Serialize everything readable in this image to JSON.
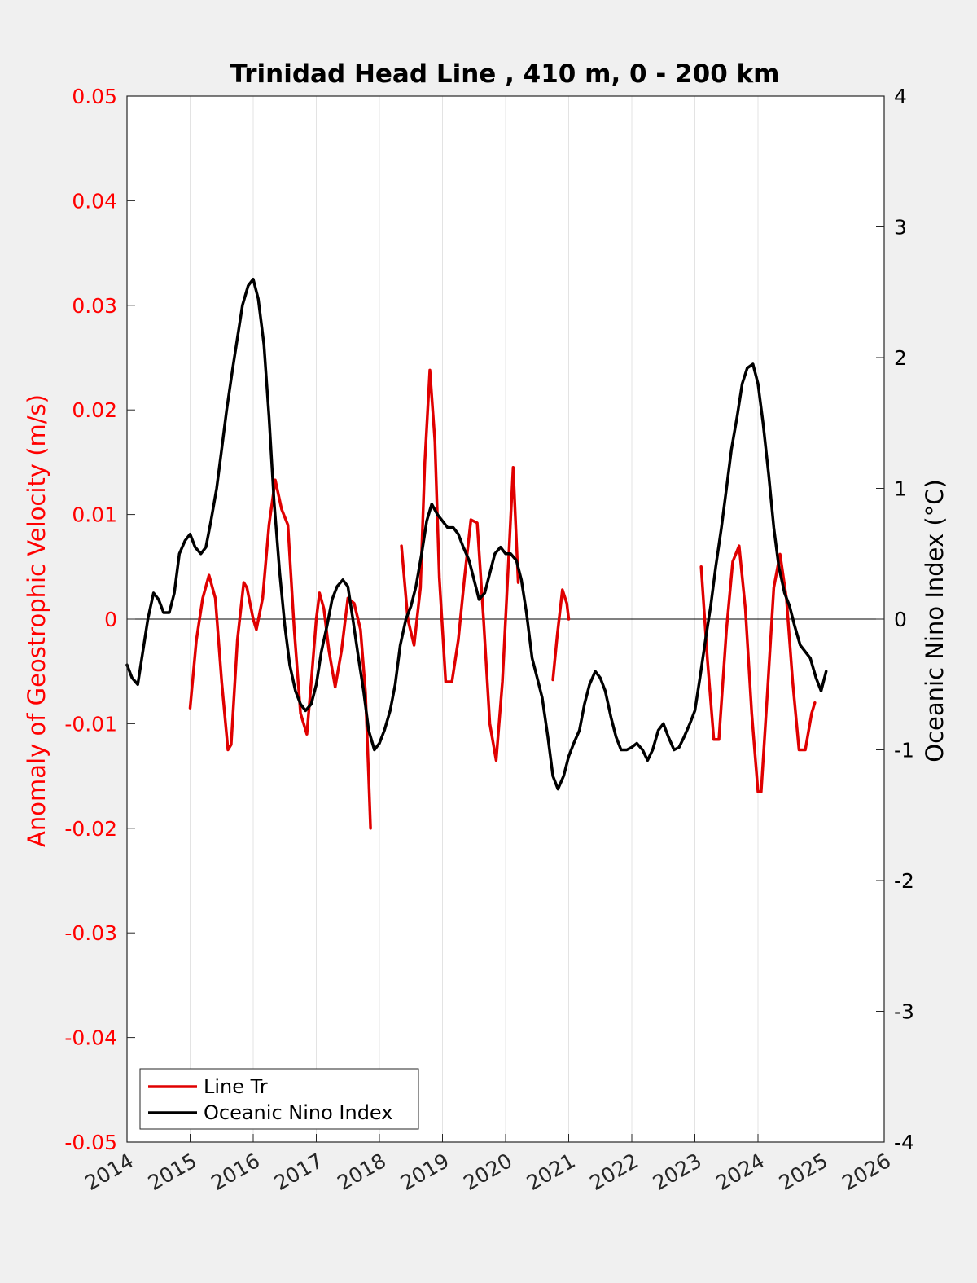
{
  "chart_data": {
    "type": "line",
    "title": "Trinidad Head Line , 410 m, 0 - 200 km",
    "xlim": [
      2014,
      2026
    ],
    "x_ticks": [
      "2014",
      "2015",
      "2016",
      "2017",
      "2018",
      "2019",
      "2020",
      "2021",
      "2022",
      "2023",
      "2024",
      "2025",
      "2026"
    ],
    "y_left": {
      "label": "Anomaly of Geostrophic Velocity (m/s)",
      "lim": [
        -0.05,
        0.05
      ],
      "ticks": [
        "0.05",
        "0.04",
        "0.03",
        "0.02",
        "0.01",
        "0",
        "-0.01",
        "-0.02",
        "-0.03",
        "-0.04",
        "-0.05"
      ],
      "color": "#ff0000"
    },
    "y_right": {
      "label": "Oceanic Nino Index (°C)",
      "lim": [
        -4,
        4
      ],
      "ticks": [
        "4",
        "3",
        "2",
        "1",
        "0",
        "-1",
        "-2",
        "-3",
        "-4"
      ],
      "color": "#000000"
    },
    "grid": "vertical",
    "legend_location": "bottom-left",
    "series": [
      {
        "name": "Line Tr",
        "axis": "left",
        "color": "#e00000",
        "segments": [
          [
            [
              2015.0,
              -0.0085
            ],
            [
              2015.1,
              -0.002
            ],
            [
              2015.2,
              0.002
            ],
            [
              2015.3,
              0.0042
            ],
            [
              2015.4,
              0.002
            ],
            [
              2015.5,
              -0.006
            ],
            [
              2015.6,
              -0.0125
            ],
            [
              2015.65,
              -0.012
            ],
            [
              2015.75,
              -0.002
            ],
            [
              2015.85,
              0.0035
            ],
            [
              2015.9,
              0.003
            ],
            [
              2016.0,
              0.0
            ],
            [
              2016.05,
              -0.001
            ],
            [
              2016.15,
              0.002
            ],
            [
              2016.25,
              0.009
            ],
            [
              2016.35,
              0.0133
            ],
            [
              2016.45,
              0.0105
            ],
            [
              2016.55,
              0.009
            ],
            [
              2016.65,
              -0.001
            ],
            [
              2016.75,
              -0.009
            ],
            [
              2016.85,
              -0.011
            ],
            [
              2016.92,
              -0.006
            ],
            [
              2017.0,
              0.0
            ],
            [
              2017.05,
              0.0025
            ],
            [
              2017.12,
              0.001
            ],
            [
              2017.2,
              -0.003
            ],
            [
              2017.3,
              -0.0065
            ],
            [
              2017.4,
              -0.003
            ],
            [
              2017.5,
              0.002
            ],
            [
              2017.6,
              0.0015
            ],
            [
              2017.7,
              -0.001
            ],
            [
              2017.78,
              -0.007
            ],
            [
              2017.83,
              -0.015
            ],
            [
              2017.86,
              -0.02
            ]
          ],
          [
            [
              2018.35,
              0.007
            ],
            [
              2018.45,
              0.0
            ],
            [
              2018.55,
              -0.0025
            ],
            [
              2018.65,
              0.003
            ],
            [
              2018.72,
              0.015
            ],
            [
              2018.8,
              0.0238
            ],
            [
              2018.88,
              0.017
            ],
            [
              2018.95,
              0.004
            ],
            [
              2019.05,
              -0.006
            ],
            [
              2019.15,
              -0.006
            ],
            [
              2019.25,
              -0.002
            ],
            [
              2019.35,
              0.004
            ],
            [
              2019.45,
              0.0095
            ],
            [
              2019.55,
              0.0092
            ],
            [
              2019.65,
              0.0
            ],
            [
              2019.75,
              -0.01
            ],
            [
              2019.85,
              -0.0135
            ],
            [
              2019.95,
              -0.006
            ],
            [
              2020.05,
              0.006
            ],
            [
              2020.12,
              0.0145
            ],
            [
              2020.2,
              0.0035
            ]
          ],
          [
            [
              2020.75,
              -0.0058
            ],
            [
              2020.82,
              -0.0015
            ],
            [
              2020.9,
              0.0028
            ],
            [
              2020.97,
              0.0015
            ],
            [
              2021.0,
              0.0
            ]
          ],
          [
            [
              2023.1,
              0.005
            ],
            [
              2023.2,
              -0.004
            ],
            [
              2023.3,
              -0.0115
            ],
            [
              2023.38,
              -0.0115
            ],
            [
              2023.5,
              -0.001
            ],
            [
              2023.6,
              0.0055
            ],
            [
              2023.7,
              0.007
            ],
            [
              2023.8,
              0.001
            ],
            [
              2023.9,
              -0.009
            ],
            [
              2024.0,
              -0.0165
            ],
            [
              2024.05,
              -0.0165
            ],
            [
              2024.15,
              -0.007
            ],
            [
              2024.25,
              0.003
            ],
            [
              2024.35,
              0.0062
            ],
            [
              2024.45,
              0.002
            ],
            [
              2024.55,
              -0.006
            ],
            [
              2024.65,
              -0.0125
            ],
            [
              2024.75,
              -0.0125
            ],
            [
              2024.85,
              -0.009
            ],
            [
              2024.9,
              -0.008
            ]
          ]
        ]
      },
      {
        "name": "Oceanic Nino Index",
        "axis": "right",
        "color": "#000000",
        "segments": [
          [
            [
              2014.0,
              -0.35
            ],
            [
              2014.08,
              -0.45
            ],
            [
              2014.17,
              -0.5
            ],
            [
              2014.25,
              -0.25
            ],
            [
              2014.33,
              0.0
            ],
            [
              2014.42,
              0.2
            ],
            [
              2014.5,
              0.15
            ],
            [
              2014.58,
              0.05
            ],
            [
              2014.67,
              0.05
            ],
            [
              2014.75,
              0.2
            ],
            [
              2014.83,
              0.5
            ],
            [
              2014.92,
              0.6
            ],
            [
              2015.0,
              0.65
            ],
            [
              2015.08,
              0.55
            ],
            [
              2015.17,
              0.5
            ],
            [
              2015.25,
              0.55
            ],
            [
              2015.33,
              0.75
            ],
            [
              2015.42,
              1.0
            ],
            [
              2015.5,
              1.3
            ],
            [
              2015.58,
              1.6
            ],
            [
              2015.67,
              1.9
            ],
            [
              2015.75,
              2.15
            ],
            [
              2015.83,
              2.4
            ],
            [
              2015.92,
              2.55
            ],
            [
              2016.0,
              2.6
            ],
            [
              2016.08,
              2.45
            ],
            [
              2016.17,
              2.1
            ],
            [
              2016.25,
              1.55
            ],
            [
              2016.33,
              0.9
            ],
            [
              2016.42,
              0.35
            ],
            [
              2016.5,
              -0.05
            ],
            [
              2016.58,
              -0.35
            ],
            [
              2016.67,
              -0.55
            ],
            [
              2016.75,
              -0.65
            ],
            [
              2016.83,
              -0.7
            ],
            [
              2016.92,
              -0.65
            ],
            [
              2017.0,
              -0.5
            ],
            [
              2017.08,
              -0.25
            ],
            [
              2017.17,
              -0.05
            ],
            [
              2017.25,
              0.15
            ],
            [
              2017.33,
              0.25
            ],
            [
              2017.42,
              0.3
            ],
            [
              2017.5,
              0.25
            ],
            [
              2017.58,
              0.0
            ],
            [
              2017.67,
              -0.3
            ],
            [
              2017.75,
              -0.55
            ],
            [
              2017.83,
              -0.85
            ],
            [
              2017.92,
              -1.0
            ],
            [
              2018.0,
              -0.95
            ],
            [
              2018.08,
              -0.85
            ],
            [
              2018.17,
              -0.7
            ],
            [
              2018.25,
              -0.5
            ],
            [
              2018.33,
              -0.2
            ],
            [
              2018.42,
              0.0
            ],
            [
              2018.5,
              0.1
            ],
            [
              2018.58,
              0.25
            ],
            [
              2018.67,
              0.5
            ],
            [
              2018.75,
              0.75
            ],
            [
              2018.83,
              0.88
            ],
            [
              2018.92,
              0.8
            ],
            [
              2019.0,
              0.75
            ],
            [
              2019.08,
              0.7
            ],
            [
              2019.17,
              0.7
            ],
            [
              2019.25,
              0.65
            ],
            [
              2019.33,
              0.55
            ],
            [
              2019.42,
              0.45
            ],
            [
              2019.5,
              0.3
            ],
            [
              2019.58,
              0.15
            ],
            [
              2019.67,
              0.2
            ],
            [
              2019.75,
              0.35
            ],
            [
              2019.83,
              0.5
            ],
            [
              2019.92,
              0.55
            ],
            [
              2020.0,
              0.5
            ],
            [
              2020.08,
              0.5
            ],
            [
              2020.17,
              0.45
            ],
            [
              2020.25,
              0.3
            ],
            [
              2020.33,
              0.05
            ],
            [
              2020.42,
              -0.3
            ],
            [
              2020.5,
              -0.45
            ],
            [
              2020.58,
              -0.6
            ],
            [
              2020.67,
              -0.9
            ],
            [
              2020.75,
              -1.2
            ],
            [
              2020.83,
              -1.3
            ],
            [
              2020.92,
              -1.2
            ],
            [
              2021.0,
              -1.05
            ],
            [
              2021.08,
              -0.95
            ],
            [
              2021.17,
              -0.85
            ],
            [
              2021.25,
              -0.65
            ],
            [
              2021.33,
              -0.5
            ],
            [
              2021.42,
              -0.4
            ],
            [
              2021.5,
              -0.45
            ],
            [
              2021.58,
              -0.55
            ],
            [
              2021.67,
              -0.75
            ],
            [
              2021.75,
              -0.9
            ],
            [
              2021.83,
              -1.0
            ],
            [
              2021.92,
              -1.0
            ],
            [
              2022.0,
              -0.98
            ],
            [
              2022.08,
              -0.95
            ],
            [
              2022.17,
              -1.0
            ],
            [
              2022.25,
              -1.08
            ],
            [
              2022.33,
              -1.0
            ],
            [
              2022.42,
              -0.85
            ],
            [
              2022.5,
              -0.8
            ],
            [
              2022.58,
              -0.9
            ],
            [
              2022.67,
              -1.0
            ],
            [
              2022.75,
              -0.98
            ],
            [
              2022.83,
              -0.9
            ],
            [
              2022.92,
              -0.8
            ],
            [
              2023.0,
              -0.7
            ],
            [
              2023.08,
              -0.45
            ],
            [
              2023.17,
              -0.15
            ],
            [
              2023.25,
              0.1
            ],
            [
              2023.33,
              0.4
            ],
            [
              2023.42,
              0.7
            ],
            [
              2023.5,
              1.0
            ],
            [
              2023.58,
              1.3
            ],
            [
              2023.67,
              1.55
            ],
            [
              2023.75,
              1.8
            ],
            [
              2023.83,
              1.92
            ],
            [
              2023.92,
              1.95
            ],
            [
              2024.0,
              1.8
            ],
            [
              2024.08,
              1.5
            ],
            [
              2024.17,
              1.1
            ],
            [
              2024.25,
              0.7
            ],
            [
              2024.33,
              0.4
            ],
            [
              2024.42,
              0.2
            ],
            [
              2024.5,
              0.1
            ],
            [
              2024.58,
              -0.05
            ],
            [
              2024.67,
              -0.2
            ],
            [
              2024.75,
              -0.25
            ],
            [
              2024.83,
              -0.3
            ],
            [
              2024.92,
              -0.45
            ],
            [
              2025.0,
              -0.55
            ],
            [
              2025.08,
              -0.4
            ]
          ]
        ]
      }
    ]
  }
}
